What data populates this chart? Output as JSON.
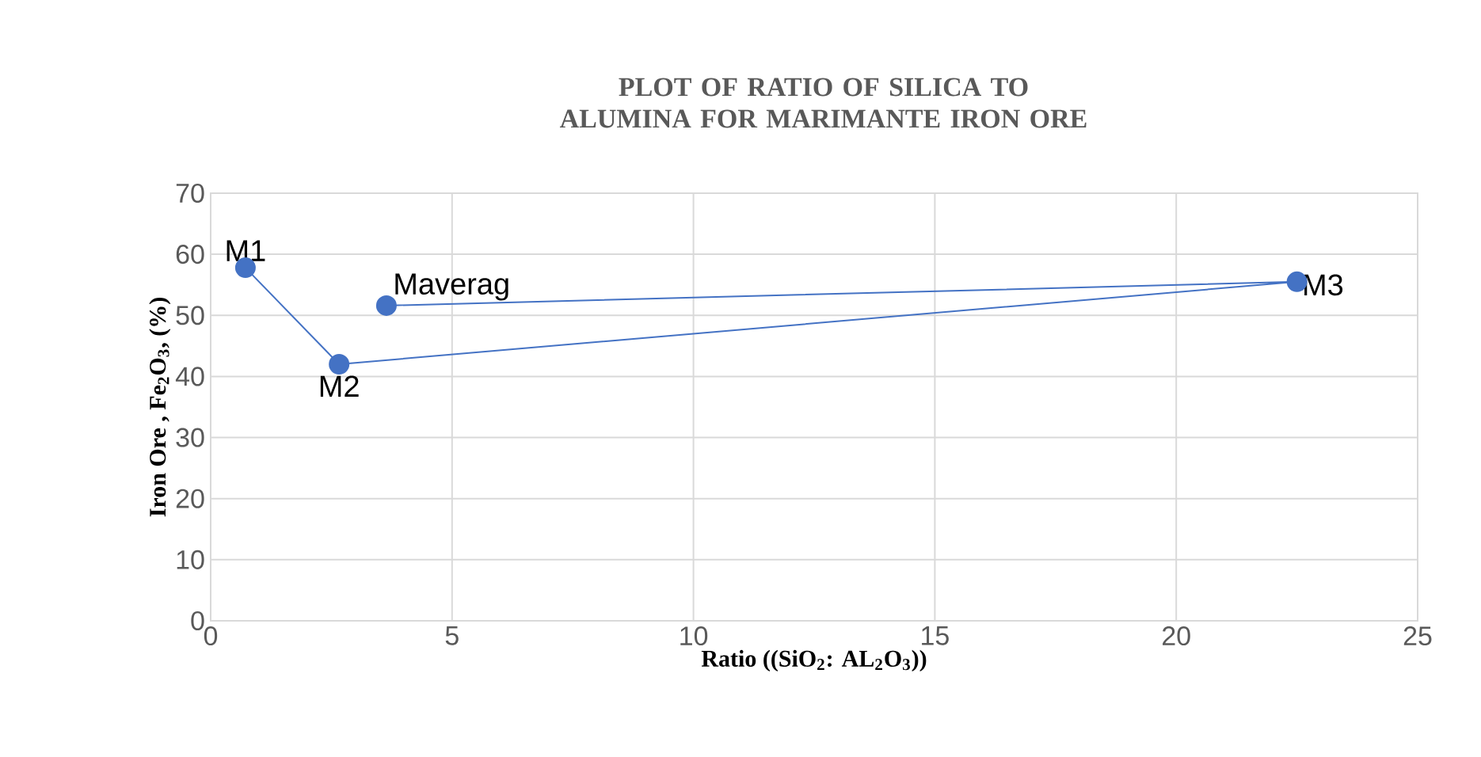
{
  "chart_data": {
    "type": "scatter",
    "title": "PLOT OF  RATIO OF SILICA TO ALUMINA FOR MARIMANTE IRON ORE",
    "xlabel": "Ratio ((SiO$_{2}$: AL$_{2}$O$_{3}$))",
    "ylabel": "Iron Ore , Fe$_{2}$O$_{3}$, (%)",
    "x": [
      0.72,
      2.66,
      22.5,
      3.64
    ],
    "series": [
      {
        "color": "#4472c4",
        "values": [
          57.8,
          42.0,
          55.5,
          51.6
        ]
      }
    ],
    "marker": "circle",
    "line_style": "solid",
    "annotations": [
      {
        "text": "M1",
        "x": 0.72,
        "y": 57.8
      },
      {
        "text": "M2",
        "x": 2.66,
        "y": 42.0
      },
      {
        "text": "M3",
        "x": 22.5,
        "y": 55.5
      },
      {
        "text": "Maverag",
        "x": 3.64,
        "y": 51.6
      }
    ],
    "xlim": [
      0,
      25
    ],
    "ylim": [
      0,
      70
    ],
    "xticks": [
      0,
      5,
      10,
      15,
      20,
      25
    ],
    "yticks": [
      0,
      10,
      20,
      30,
      40,
      50,
      60,
      70
    ],
    "grid": true
  }
}
